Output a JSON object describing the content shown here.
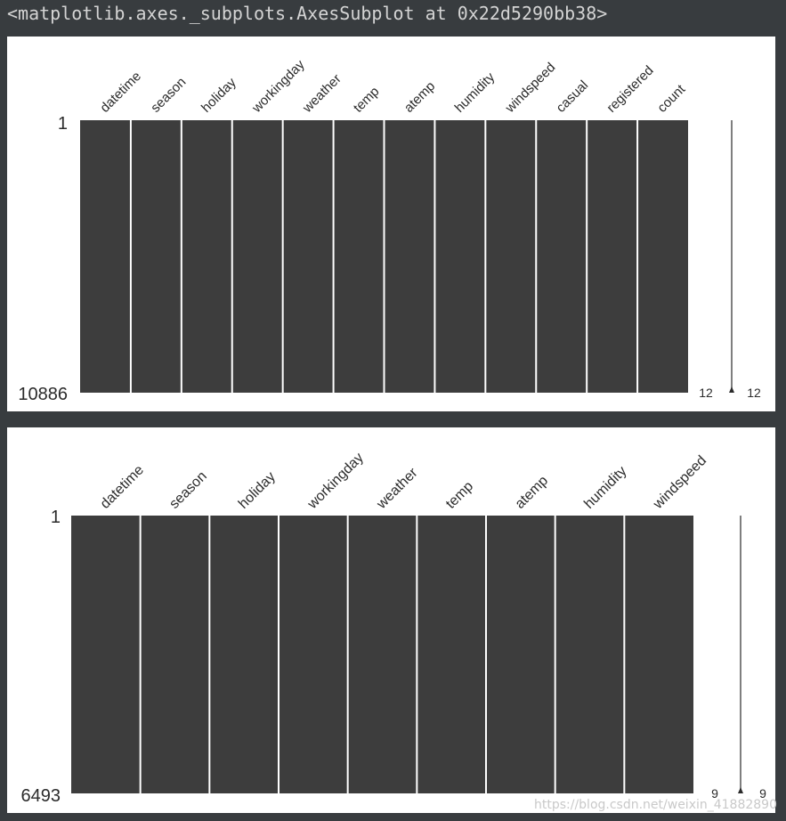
{
  "output_repr": "<matplotlib.axes._subplots.AxesSubplot at 0x22d5290bb38>",
  "watermark": "https://blog.csdn.net/weixin_41882890",
  "chart_data": [
    {
      "type": "missing-value matrix",
      "columns": [
        "datetime",
        "season",
        "holiday",
        "workingday",
        "weather",
        "temp",
        "atemp",
        "humidity",
        "windspeed",
        "casual",
        "registered",
        "count"
      ],
      "row_top_label": "1",
      "row_bottom_label": "10886",
      "n_rows": 10886,
      "missing_counts": [
        0,
        0,
        0,
        0,
        0,
        0,
        0,
        0,
        0,
        0,
        0,
        0
      ],
      "sparkline_min": 12,
      "sparkline_max": 12,
      "bar_color": "#3d3d3d"
    },
    {
      "type": "missing-value matrix",
      "columns": [
        "datetime",
        "season",
        "holiday",
        "workingday",
        "weather",
        "temp",
        "atemp",
        "humidity",
        "windspeed"
      ],
      "row_top_label": "1",
      "row_bottom_label": "6493",
      "n_rows": 6493,
      "missing_counts": [
        0,
        0,
        0,
        0,
        0,
        0,
        0,
        0,
        0
      ],
      "sparkline_min": 9,
      "sparkline_max": 9,
      "bar_color": "#3d3d3d"
    }
  ]
}
